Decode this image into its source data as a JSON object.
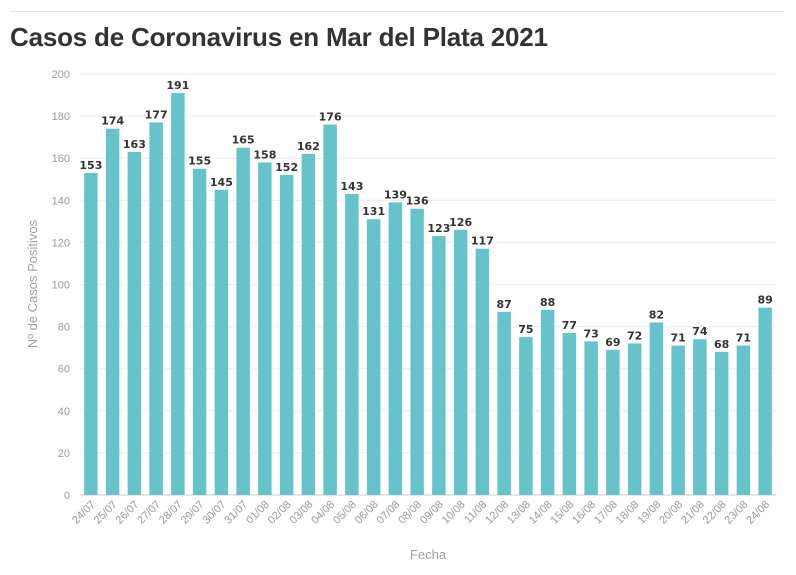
{
  "chart_data": {
    "type": "bar",
    "title": "Casos de Coronavirus en Mar del Plata 2021",
    "xlabel": "Fecha",
    "ylabel": "Nº de Casos Positivos",
    "ylim": [
      0,
      200
    ],
    "yticks": [
      0,
      20,
      40,
      60,
      80,
      100,
      120,
      140,
      160,
      180,
      200
    ],
    "grid": true,
    "data_labels": true,
    "bar_color": "#67c3cb",
    "categories": [
      "24/07",
      "25/07",
      "26/07",
      "27/07",
      "28/07",
      "29/07",
      "30/07",
      "31/07",
      "01/08",
      "02/08",
      "03/08",
      "04/08",
      "05/08",
      "06/08",
      "07/08",
      "08/08",
      "09/08",
      "10/08",
      "11/08",
      "12/08",
      "13/08",
      "14/08",
      "15/08",
      "16/08",
      "17/08",
      "18/08",
      "19/08",
      "20/08",
      "21/08",
      "22/08",
      "23/08",
      "24/08"
    ],
    "values": [
      153,
      174,
      163,
      177,
      191,
      155,
      145,
      165,
      158,
      152,
      162,
      176,
      143,
      131,
      139,
      136,
      123,
      126,
      117,
      87,
      75,
      88,
      77,
      73,
      69,
      72,
      82,
      71,
      74,
      68,
      71,
      89
    ]
  }
}
